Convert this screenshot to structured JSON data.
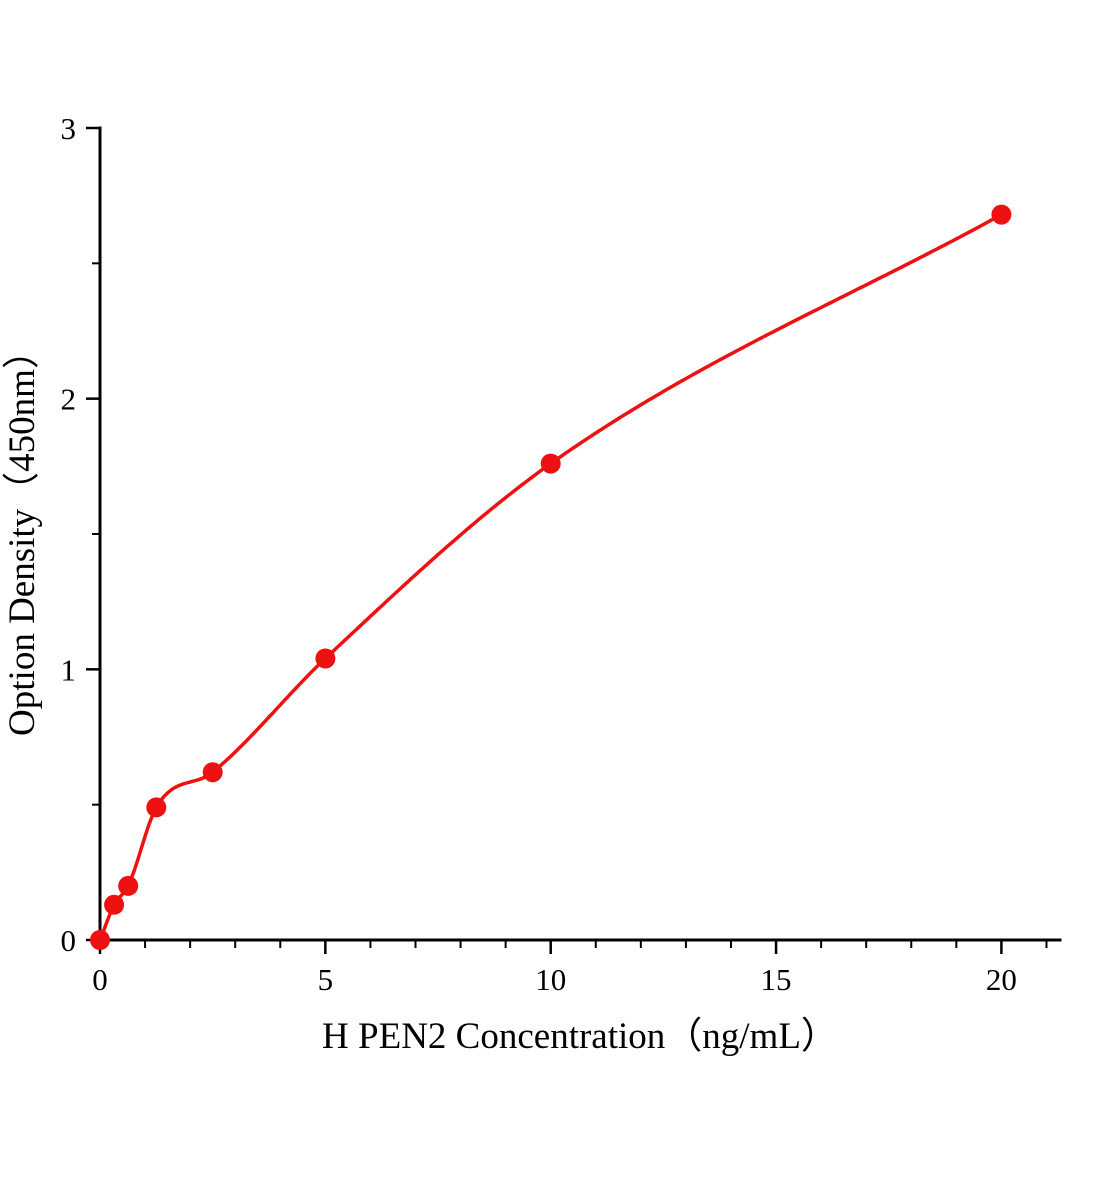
{
  "chart_data": {
    "type": "scatter",
    "title": "",
    "xlabel": "H PEN2 Concentration（ng/mL）",
    "ylabel": "Option Density（450nm）",
    "x": [
      0,
      0.313,
      0.625,
      1.25,
      2.5,
      5,
      10,
      20
    ],
    "y": [
      0,
      0.13,
      0.2,
      0.49,
      0.62,
      1.04,
      1.76,
      2.68
    ],
    "xlim": [
      0,
      21.3
    ],
    "ylim": [
      0,
      3
    ],
    "x_major_ticks": [
      0,
      5,
      10,
      15,
      20
    ],
    "x_minor_step": 1,
    "y_major_ticks": [
      0,
      1,
      2,
      3
    ],
    "y_minor_step": 0.5,
    "grid": false,
    "legend": "none",
    "series_color": "#ee1111",
    "axis_color": "#000000",
    "marker_radius_px": 10,
    "curve_style": "smooth-fit-through-points"
  }
}
